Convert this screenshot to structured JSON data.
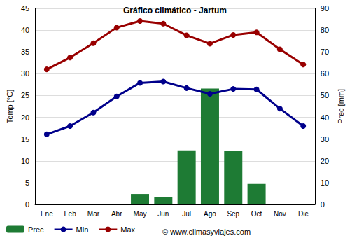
{
  "chart_data": {
    "type": "bar",
    "title": "Gráfico climático - Jartum",
    "ylabel": "Temp [°C]",
    "y2label": "Prec [mm]",
    "annotations": [
      "© www.climasyviajes.com"
    ],
    "categories": [
      "Ene",
      "Feb",
      "Mar",
      "Abr",
      "May",
      "Jun",
      "Jul",
      "Ago",
      "Sep",
      "Oct",
      "Nov",
      "Dic"
    ],
    "series": [
      {
        "name": "Prec",
        "type": "bar",
        "axis": "y2",
        "color": "#1e7b34",
        "values": [
          0,
          0,
          0,
          0.1,
          4.8,
          3.4,
          24.8,
          53.2,
          24.6,
          9.4,
          0.1,
          0
        ]
      },
      {
        "name": "Min",
        "type": "line",
        "color": "#00008b",
        "marker": "circle",
        "values": [
          16.1,
          18.0,
          21.1,
          24.8,
          27.9,
          28.2,
          26.7,
          25.4,
          26.5,
          26.4,
          22.0,
          18.0
        ]
      },
      {
        "name": "Max",
        "type": "line",
        "color": "#990000",
        "marker": "circle",
        "values": [
          31.0,
          33.7,
          37.0,
          40.6,
          42.1,
          41.5,
          38.8,
          36.9,
          38.9,
          39.5,
          35.6,
          32.1
        ]
      }
    ],
    "ylim": [
      0,
      45
    ],
    "yticks": [
      0,
      5,
      10,
      15,
      20,
      25,
      30,
      35,
      40,
      45
    ],
    "y2lim": [
      0,
      90
    ],
    "y2ticks": [
      0,
      10,
      20,
      30,
      40,
      50,
      60,
      70,
      80,
      90
    ],
    "grid": true,
    "legend": "bottom left"
  }
}
